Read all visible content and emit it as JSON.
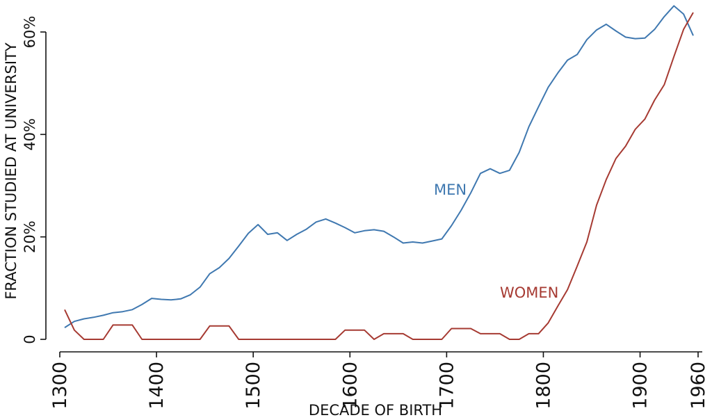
{
  "chart_data": {
    "type": "line",
    "xlabel": "DECADE OF BIRTH",
    "ylabel": "FRACTION  STUDIED  AT UNIVERSITY",
    "xlim": [
      1300,
      1960
    ],
    "ylim": [
      0,
      0.6
    ],
    "xticks": [
      1300,
      1400,
      1500,
      1600,
      1700,
      1800,
      1900,
      1960
    ],
    "yticks": [
      0,
      0.2,
      0.4,
      0.6
    ],
    "yticklabels": [
      "0",
      "20%",
      "40%",
      "60%"
    ],
    "grid": false,
    "colors": {
      "men": "#3f78b0",
      "women": "#a63a32"
    },
    "series": [
      {
        "name": "MEN",
        "color": "#3f78b0",
        "x": [
          1305,
          1315,
          1325,
          1335,
          1345,
          1355,
          1365,
          1375,
          1385,
          1395,
          1405,
          1415,
          1425,
          1435,
          1445,
          1455,
          1465,
          1475,
          1485,
          1495,
          1505,
          1515,
          1525,
          1535,
          1545,
          1555,
          1565,
          1575,
          1585,
          1595,
          1605,
          1615,
          1625,
          1635,
          1645,
          1655,
          1665,
          1675,
          1685,
          1695,
          1705,
          1715,
          1725,
          1735,
          1745,
          1755,
          1765,
          1775,
          1785,
          1795,
          1805,
          1815,
          1825,
          1835,
          1845,
          1855,
          1865,
          1875,
          1885,
          1895,
          1905,
          1915,
          1925,
          1935,
          1945,
          1955
        ],
        "values": [
          0.023,
          0.035,
          0.04,
          0.043,
          0.047,
          0.052,
          0.054,
          0.058,
          0.068,
          0.08,
          0.078,
          0.077,
          0.079,
          0.087,
          0.102,
          0.128,
          0.14,
          0.158,
          0.182,
          0.207,
          0.224,
          0.205,
          0.208,
          0.193,
          0.205,
          0.215,
          0.229,
          0.235,
          0.227,
          0.218,
          0.208,
          0.212,
          0.214,
          0.211,
          0.2,
          0.188,
          0.19,
          0.188,
          0.192,
          0.196,
          0.222,
          0.252,
          0.286,
          0.324,
          0.333,
          0.324,
          0.33,
          0.365,
          0.415,
          0.454,
          0.492,
          0.52,
          0.545,
          0.556,
          0.585,
          0.604,
          0.615,
          0.602,
          0.59,
          0.587,
          0.588,
          0.605,
          0.63,
          0.651,
          0.635,
          0.593
        ]
      },
      {
        "name": "WOMEN",
        "color": "#a63a32",
        "x": [
          1305,
          1315,
          1325,
          1335,
          1345,
          1355,
          1365,
          1375,
          1385,
          1395,
          1405,
          1415,
          1425,
          1435,
          1445,
          1455,
          1465,
          1475,
          1485,
          1495,
          1505,
          1515,
          1525,
          1535,
          1545,
          1555,
          1565,
          1575,
          1585,
          1595,
          1605,
          1615,
          1625,
          1635,
          1645,
          1655,
          1665,
          1675,
          1685,
          1695,
          1705,
          1715,
          1725,
          1735,
          1745,
          1755,
          1765,
          1775,
          1785,
          1795,
          1805,
          1815,
          1825,
          1835,
          1845,
          1855,
          1865,
          1875,
          1885,
          1895,
          1905,
          1915,
          1925,
          1935,
          1945,
          1955
        ],
        "values": [
          0.058,
          0.018,
          0.0,
          0.0,
          0.0,
          0.028,
          0.028,
          0.028,
          0.0,
          0.0,
          0.0,
          0.0,
          0.0,
          0.0,
          0.0,
          0.026,
          0.026,
          0.026,
          0.0,
          0.0,
          0.0,
          0.0,
          0.0,
          0.0,
          0.0,
          0.0,
          0.0,
          0.0,
          0.0,
          0.018,
          0.018,
          0.018,
          0.0,
          0.011,
          0.011,
          0.011,
          0.0,
          0.0,
          0.0,
          0.0,
          0.021,
          0.021,
          0.021,
          0.011,
          0.011,
          0.011,
          0.0,
          0.0,
          0.011,
          0.011,
          0.032,
          0.065,
          0.097,
          0.143,
          0.19,
          0.262,
          0.312,
          0.353,
          0.377,
          0.41,
          0.43,
          0.467,
          0.497,
          0.552,
          0.605,
          0.638
        ]
      }
    ]
  }
}
